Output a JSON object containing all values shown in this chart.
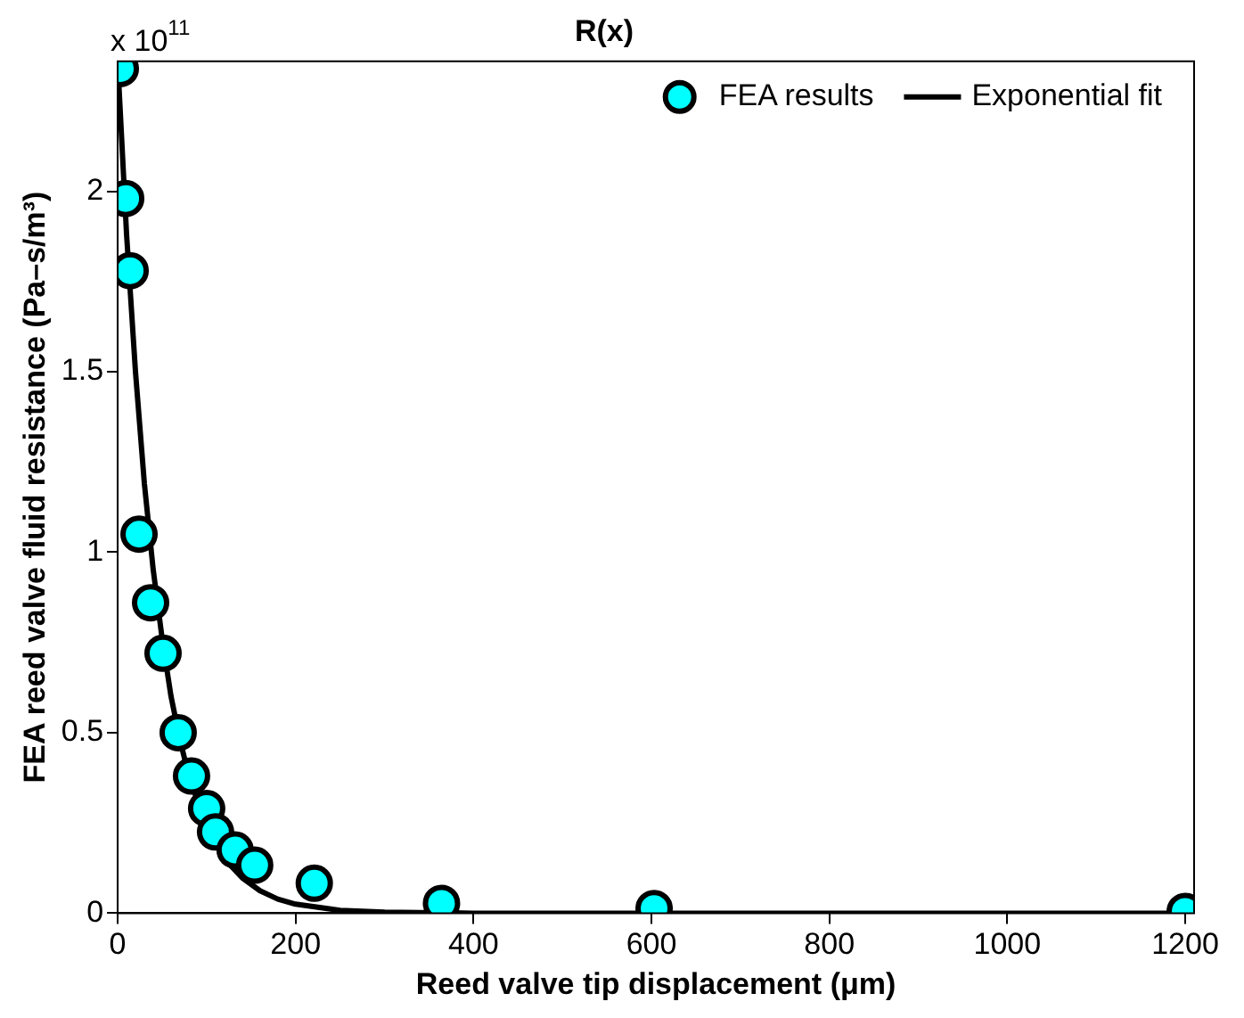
{
  "chart_data": {
    "type": "scatter",
    "title": "R(x)",
    "xlabel": "Reed valve tip displacement (μm)",
    "ylabel": "FEA reed valve fluid resistance (Pa–s/m³)",
    "annotations": [
      "x 10$^{11}$"
    ],
    "xlim": [
      0,
      1210
    ],
    "xticks": [
      0,
      200,
      400,
      600,
      800,
      1000,
      1200
    ],
    "ylim": [
      0,
      2.36
    ],
    "yticks": [
      0,
      0.5,
      1,
      1.5,
      2
    ],
    "grid": false,
    "legend": "top right",
    "marker": "circle",
    "series": [
      {
        "name": "FEA results",
        "color": "#00ffff",
        "x": [
          3,
          9,
          14,
          24,
          37,
          51,
          68,
          83,
          100,
          110,
          132,
          154,
          221,
          364,
          603,
          1200
        ],
        "values": [
          2.34,
          1.98,
          1.78,
          1.05,
          0.86,
          0.72,
          0.5,
          0.38,
          0.29,
          0.225,
          0.175,
          0.133,
          0.083,
          0.027,
          0.013,
          0.005
        ]
      },
      {
        "name": "Exponential fit",
        "type": "line",
        "color": "#000000",
        "line_style": "solid",
        "marker": "none",
        "x": [
          0,
          10,
          20,
          30,
          40,
          50,
          60,
          70,
          80,
          100,
          120,
          140,
          160,
          180,
          200,
          250,
          300,
          400,
          600,
          800,
          1000,
          1200
        ],
        "values": [
          2.36,
          1.88,
          1.5,
          1.19,
          0.95,
          0.76,
          0.6,
          0.48,
          0.38,
          0.24,
          0.15,
          0.098,
          0.062,
          0.039,
          0.025,
          0.008,
          0.003,
          0,
          0,
          0,
          0,
          0
        ]
      }
    ]
  }
}
